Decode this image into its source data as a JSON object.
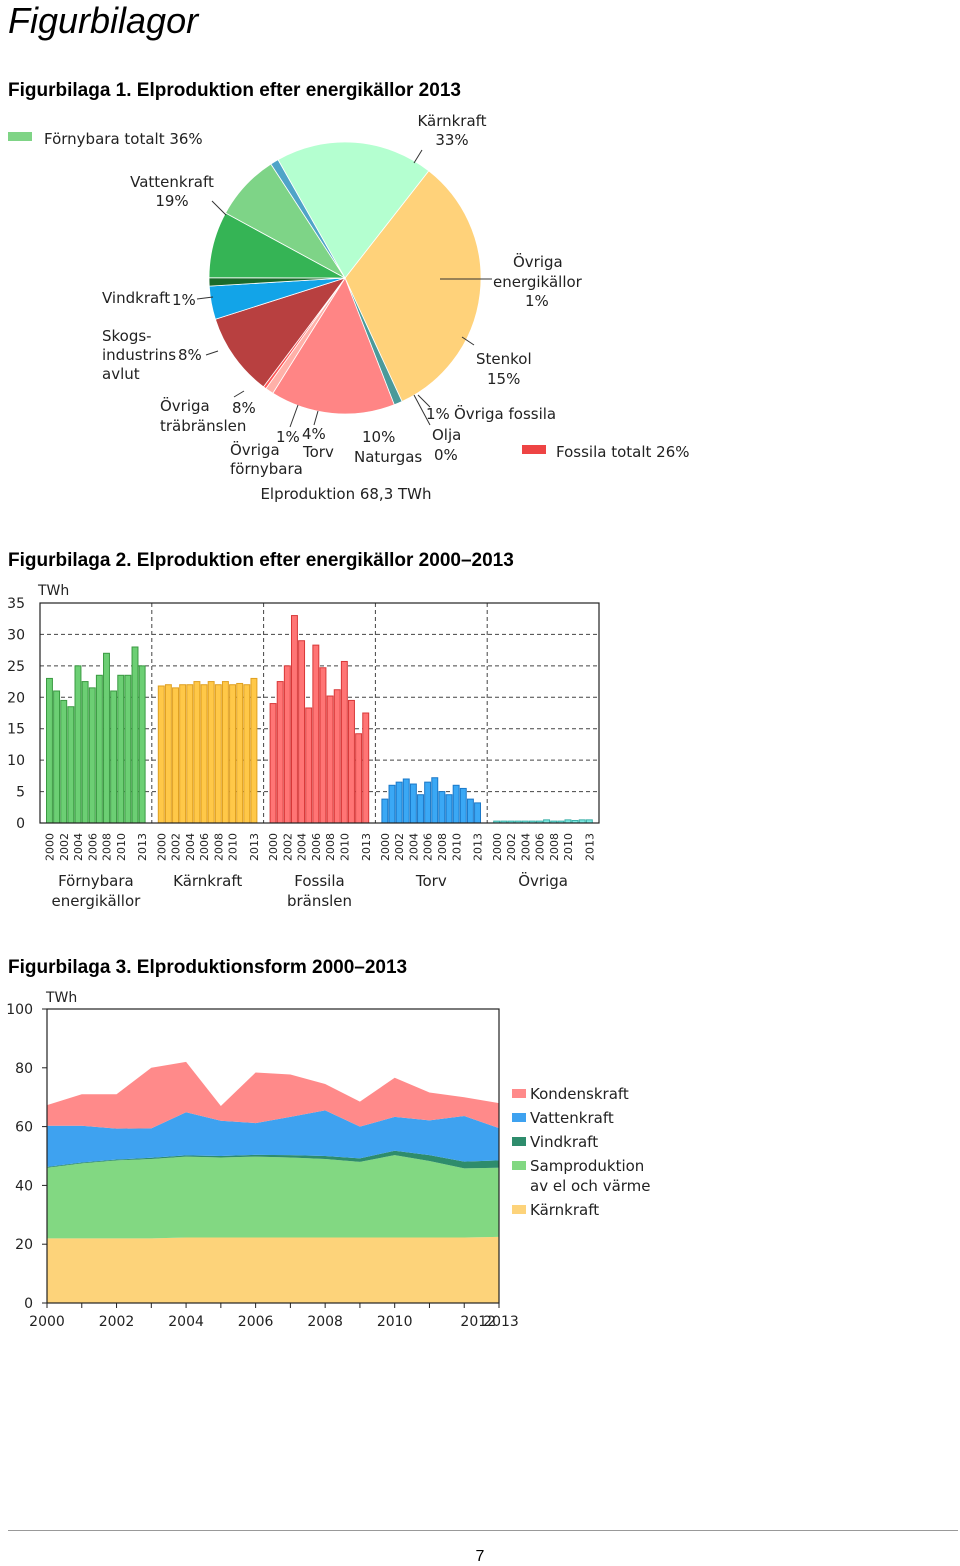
{
  "page": {
    "title": "Figurbilagor",
    "page_number": "7"
  },
  "figures": [
    {
      "title": "Figurbilaga 1. Elproduktion efter energikällor 2013"
    },
    {
      "title": "Figurbilaga 2. Elproduktion efter energikällor 2000–2013"
    },
    {
      "title": "Figurbilaga 3. Elproduktionsform 2000–2013"
    }
  ],
  "chart_data": [
    {
      "type": "pie",
      "total_label": "Elproduktion 68,3 TWh",
      "slices": [
        {
          "name": "Kärnkraft",
          "value": 33,
          "label": "33%",
          "color": "#ffd27a"
        },
        {
          "name": "Övriga energikällor",
          "value": 1,
          "label": "1%",
          "color": "#4a9a9a"
        },
        {
          "name": "Stenkol",
          "value": 15,
          "label": "15%",
          "color": "#ff8585"
        },
        {
          "name": "Övriga fossila",
          "value": 1,
          "label": "1%",
          "color": "#ffb0a8"
        },
        {
          "name": "Olja",
          "value": 0,
          "label": "0%",
          "color": "#ff5555"
        },
        {
          "name": "Naturgas",
          "value": 10,
          "label": "10%",
          "color": "#b84040"
        },
        {
          "name": "Torv",
          "value": 4,
          "label": "4%",
          "color": "#12a4e8"
        },
        {
          "name": "Övriga förnybara",
          "value": 1,
          "label": "1%",
          "color": "#1a6a2a"
        },
        {
          "name": "Övriga träbränslen",
          "value": 8,
          "label": "8%",
          "color": "#35b455"
        },
        {
          "name": "Skogsindustrins avlut",
          "value": 8,
          "label": "8%",
          "color": "#7ed487"
        },
        {
          "name": "Vindkraft",
          "value": 1,
          "label": "1%",
          "color": "#4fa4c8"
        },
        {
          "name": "Vattenkraft",
          "value": 19,
          "label": "19%",
          "color": "#b4ffd0"
        }
      ],
      "legend": [
        {
          "label": "Förnybara totalt 36%",
          "color": "#7fd486"
        },
        {
          "label": "Fossila totalt 26%",
          "color": "#ee4444"
        }
      ]
    },
    {
      "type": "bar",
      "ylabel": "TWh",
      "ylim": [
        0,
        35
      ],
      "yticks": [
        "0",
        "5",
        "10",
        "15",
        "20",
        "25",
        "30",
        "35"
      ],
      "x": [
        "2000",
        "2001",
        "2002",
        "2003",
        "2004",
        "2005",
        "2006",
        "2007",
        "2008",
        "2009",
        "2010",
        "2011",
        "2012",
        "2013"
      ],
      "tick_labels": [
        "2000",
        "2002",
        "2004",
        "2006",
        "2008",
        "2010",
        "2013"
      ],
      "groups": [
        {
          "name": "Förnybara energikällor",
          "name_lines": [
            "Förnybara",
            "energikällor"
          ],
          "color": "#6ccf74",
          "edge": "#3a9a42",
          "values": [
            23,
            21,
            19.5,
            18.5,
            25,
            22.5,
            21.5,
            23.5,
            27,
            21,
            23.5,
            23.5,
            28,
            25
          ]
        },
        {
          "name": "Kärnkraft",
          "name_lines": [
            "Kärnkraft"
          ],
          "color": "#ffc848",
          "edge": "#e0a020",
          "values": [
            21.8,
            22,
            21.5,
            22,
            22,
            22.5,
            22,
            22.5,
            22,
            22.5,
            22,
            22.2,
            22,
            23
          ]
        },
        {
          "name": "Fossila bränslen",
          "name_lines": [
            "Fossila",
            "bränslen"
          ],
          "color": "#ff7575",
          "edge": "#d83838",
          "values": [
            19,
            22.5,
            25,
            33,
            29,
            18.3,
            28.3,
            24.7,
            20.2,
            21.2,
            25.7,
            19.5,
            14.2,
            17.5
          ]
        },
        {
          "name": "Torv",
          "name_lines": [
            "Torv"
          ],
          "color": "#3aa8f5",
          "edge": "#1a78c8",
          "values": [
            3.8,
            6,
            6.5,
            7,
            6.2,
            4.5,
            6.5,
            7.2,
            5,
            4.5,
            6,
            5.5,
            3.8,
            3.2
          ]
        },
        {
          "name": "Övriga",
          "name_lines": [
            "Övriga"
          ],
          "color": "#7ae8e0",
          "edge": "#3ab0a8",
          "values": [
            0.3,
            0.3,
            0.3,
            0.3,
            0.3,
            0.3,
            0.3,
            0.5,
            0.3,
            0.3,
            0.5,
            0.4,
            0.5,
            0.5
          ]
        }
      ]
    },
    {
      "type": "area",
      "ylabel": "TWh",
      "ylim": [
        0,
        100
      ],
      "yticks": [
        "0",
        "20",
        "40",
        "60",
        "80",
        "100"
      ],
      "x": [
        2000,
        2001,
        2002,
        2003,
        2004,
        2005,
        2006,
        2007,
        2008,
        2009,
        2010,
        2011,
        2012,
        2013
      ],
      "xticks": [
        "2000",
        "2002",
        "2004",
        "2006",
        "2008",
        "2010",
        "2012",
        "2013"
      ],
      "series": [
        {
          "name": "Kärnkraft",
          "color": "#fdd37a",
          "values": [
            22,
            22,
            22,
            22,
            22.3,
            22.3,
            22.3,
            22.3,
            22.3,
            22.3,
            22.3,
            22.3,
            22.3,
            22.5
          ]
        },
        {
          "name": "Samproduktion av el och värme",
          "name_lines": [
            "Samproduktion",
            "av el och värme"
          ],
          "color": "#82d882",
          "values": [
            24,
            25.5,
            26.5,
            27,
            27.5,
            27.2,
            27.5,
            27.2,
            26.7,
            25.7,
            28,
            26,
            23.5,
            23.5
          ]
        },
        {
          "name": "Vindkraft",
          "color": "#2e8c6c",
          "values": [
            0.3,
            0.3,
            0.3,
            0.4,
            0.4,
            0.5,
            0.6,
            0.8,
            1,
            1.2,
            1.5,
            2,
            2.3,
            2.5
          ]
        },
        {
          "name": "Vattenkraft",
          "color": "#3ea2f0",
          "values": [
            14,
            12.5,
            10.5,
            10,
            14.7,
            12,
            10.8,
            13,
            15.5,
            10.8,
            11.5,
            11.8,
            15.5,
            11
          ]
        },
        {
          "name": "Kondenskraft",
          "color": "#ff8a8a",
          "values": [
            7,
            10.7,
            11.7,
            20.6,
            17.1,
            5,
            17.2,
            14.4,
            9,
            8.5,
            13.3,
            9.5,
            6.4,
            8.5
          ]
        }
      ],
      "legend_order": [
        "Kondenskraft",
        "Vattenkraft",
        "Vindkraft",
        "Samproduktion av el och värme",
        "Kärnkraft"
      ]
    }
  ]
}
